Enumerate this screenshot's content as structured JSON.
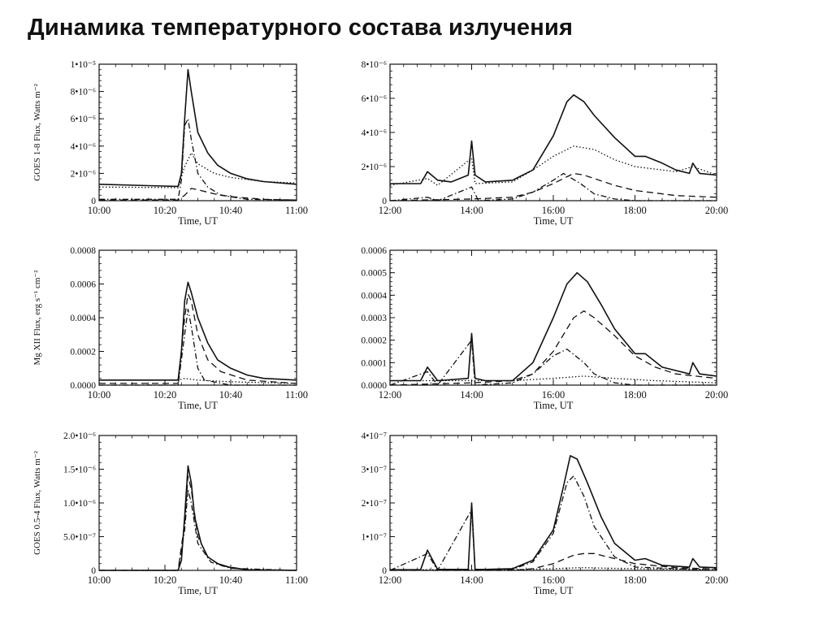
{
  "page": {
    "title": "Динамика температурного состава излучения"
  },
  "chart_data": [
    {
      "id": "goes18-left",
      "type": "line",
      "ylabel": "GOES 1-8 Flux, Watts m⁻²",
      "xlabel": "Time, UT",
      "xlim": [
        "10:00",
        "11:00"
      ],
      "ylim": [
        0,
        1e-05
      ],
      "xticks": [
        "10:00",
        "10:20",
        "10:40",
        "11:00"
      ],
      "yticks": [
        "0",
        "2•10⁻⁶",
        "4•10⁻⁶",
        "6•10⁻⁶",
        "8•10⁻⁶",
        "1•10⁻⁵"
      ],
      "series": [
        {
          "style": "solid",
          "x": [
            "10:00",
            "10:15",
            "10:24",
            "10:25",
            "10:26",
            "10:27",
            "10:28",
            "10:30",
            "10:33",
            "10:36",
            "10:40",
            "10:45",
            "10:50",
            "11:00"
          ],
          "y": [
            1.2e-06,
            1.1e-06,
            1.05e-06,
            2e-06,
            6e-06,
            9.6e-06,
            8e-06,
            5e-06,
            3.5e-06,
            2.6e-06,
            2e-06,
            1.6e-06,
            1.4e-06,
            1.2e-06
          ]
        },
        {
          "style": "dotted",
          "x": [
            "10:00",
            "10:24",
            "10:26",
            "10:28",
            "10:30",
            "10:35",
            "10:40",
            "10:50",
            "11:00"
          ],
          "y": [
            1e-06,
            9.5e-07,
            2.5e-06,
            3.5e-06,
            2.7e-06,
            2e-06,
            1.7e-06,
            1.4e-06,
            1.3e-06
          ]
        },
        {
          "style": "dash-dot",
          "x": [
            "10:00",
            "10:24",
            "10:25",
            "10:26",
            "10:27",
            "10:28",
            "10:30",
            "10:33",
            "10:37",
            "10:45",
            "11:00"
          ],
          "y": [
            1e-07,
            1e-07,
            1.5e-06,
            5.5e-06,
            6e-06,
            4.5e-06,
            2e-06,
            1e-06,
            4e-07,
            1e-07,
            5e-08
          ]
        },
        {
          "style": "dashed",
          "x": [
            "10:00",
            "10:24",
            "10:26",
            "10:28",
            "10:30",
            "10:35",
            "10:40",
            "10:50",
            "11:00"
          ],
          "y": [
            5e-08,
            5e-08,
            4e-07,
            9e-07,
            8e-07,
            5e-07,
            3e-07,
            1e-07,
            5e-08
          ]
        }
      ]
    },
    {
      "id": "goes18-right",
      "type": "line",
      "xlabel": "Time, UT",
      "xlim": [
        "12:00",
        "20:00"
      ],
      "ylim": [
        0,
        8e-06
      ],
      "xticks": [
        "12:00",
        "14:00",
        "16:00",
        "18:00",
        "20:00"
      ],
      "yticks": [
        "0",
        "2•10⁻⁶",
        "4•10⁻⁶",
        "6•10⁻⁶",
        "8•10⁻⁶"
      ],
      "series": [
        {
          "style": "solid",
          "x": [
            "12:00",
            "12:45",
            "12:55",
            "13:10",
            "13:30",
            "13:55",
            "14:00",
            "14:05",
            "14:20",
            "15:00",
            "15:30",
            "16:00",
            "16:20",
            "16:30",
            "16:45",
            "17:00",
            "17:30",
            "18:00",
            "18:15",
            "18:40",
            "19:00",
            "19:20",
            "19:25",
            "19:35",
            "20:00"
          ],
          "y": [
            1e-06,
            1e-06,
            1.7e-06,
            1.2e-06,
            1.1e-06,
            1.5e-06,
            3.5e-06,
            1.5e-06,
            1.1e-06,
            1.2e-06,
            1.8e-06,
            3.8e-06,
            5.8e-06,
            6.2e-06,
            5.8e-06,
            5e-06,
            3.7e-06,
            2.6e-06,
            2.6e-06,
            2.2e-06,
            1.8e-06,
            1.6e-06,
            2.2e-06,
            1.6e-06,
            1.5e-06
          ]
        },
        {
          "style": "dotted",
          "x": [
            "12:00",
            "12:55",
            "13:10",
            "14:00",
            "14:05",
            "15:00",
            "15:30",
            "16:00",
            "16:30",
            "17:00",
            "17:30",
            "18:00",
            "19:00",
            "19:25",
            "20:00"
          ],
          "y": [
            9e-07,
            1.3e-06,
            9e-07,
            2.5e-06,
            1e-06,
            1.1e-06,
            1.8e-06,
            2.6e-06,
            3.2e-06,
            3e-06,
            2.4e-06,
            2e-06,
            1.7e-06,
            2e-06,
            1.5e-06
          ]
        },
        {
          "style": "dashed",
          "x": [
            "12:00",
            "14:00",
            "15:00",
            "15:30",
            "16:00",
            "16:30",
            "16:45",
            "17:00",
            "17:30",
            "18:00",
            "19:00",
            "20:00"
          ],
          "y": [
            0.0,
            1e-07,
            2e-07,
            5e-07,
            1e-06,
            1.6e-06,
            1.5e-06,
            1.3e-06,
            9e-07,
            6e-07,
            3e-07,
            2e-07
          ]
        },
        {
          "style": "dash-dot",
          "x": [
            "12:00",
            "12:55",
            "13:10",
            "14:00",
            "14:10",
            "15:00",
            "15:30",
            "16:00",
            "16:15",
            "16:40",
            "17:00",
            "17:30",
            "18:00",
            "20:00"
          ],
          "y": [
            0.0,
            2e-07,
            0.0,
            8e-07,
            0.0,
            1e-07,
            5e-07,
            1.2e-06,
            1.6e-06,
            1e-06,
            4e-07,
            1e-07,
            0.0,
            0.0
          ]
        }
      ]
    },
    {
      "id": "mgxii-left",
      "type": "line",
      "ylabel": "Mg XII Flux, erg s⁻¹ cm⁻²",
      "xlabel": "Time, UT",
      "xlim": [
        "10:00",
        "11:00"
      ],
      "ylim": [
        0,
        0.0008
      ],
      "xticks": [
        "10:00",
        "10:20",
        "10:40",
        "11:00"
      ],
      "yticks": [
        "0.0000",
        "0.0002",
        "0.0004",
        "0.0006",
        "0.0008"
      ],
      "series": [
        {
          "style": "solid",
          "x": [
            "10:00",
            "10:24",
            "10:25",
            "10:26",
            "10:27",
            "10:28",
            "10:30",
            "10:33",
            "10:36",
            "10:40",
            "10:45",
            "10:50",
            "11:00"
          ],
          "y": [
            3e-05,
            3e-05,
            0.0002,
            0.0005,
            0.00061,
            0.00055,
            0.0004,
            0.00025,
            0.00015,
            0.0001,
            6e-05,
            4e-05,
            3e-05
          ]
        },
        {
          "style": "dashed",
          "x": [
            "10:00",
            "10:24",
            "10:26",
            "10:27",
            "10:28",
            "10:30",
            "10:33",
            "10:37",
            "10:45",
            "11:00"
          ],
          "y": [
            1e-05,
            1e-05,
            0.0004,
            0.00054,
            0.0005,
            0.0003,
            0.00015,
            8e-05,
            3e-05,
            1e-05
          ]
        },
        {
          "style": "dash-dot",
          "x": [
            "10:00",
            "10:24",
            "10:26",
            "10:27",
            "10:28",
            "10:30",
            "10:32",
            "10:40",
            "11:00"
          ],
          "y": [
            0.0,
            0.0,
            0.0003,
            0.00045,
            0.00035,
            0.0001,
            3e-05,
            0.0,
            0.0
          ]
        },
        {
          "style": "dotted",
          "x": [
            "10:00",
            "10:24",
            "10:26",
            "10:30",
            "10:40",
            "11:00"
          ],
          "y": [
            3e-05,
            3e-05,
            4e-05,
            3e-05,
            2e-05,
            1e-05
          ]
        }
      ]
    },
    {
      "id": "mgxii-right",
      "type": "line",
      "xlabel": "Time, UT",
      "xlim": [
        "12:00",
        "20:00"
      ],
      "ylim": [
        0,
        0.0006
      ],
      "xticks": [
        "12:00",
        "14:00",
        "16:00",
        "18:00",
        "20:00"
      ],
      "yticks": [
        "0.0000",
        "0.0001",
        "0.0002",
        "0.0003",
        "0.0004",
        "0.0005",
        "0.0006"
      ],
      "series": [
        {
          "style": "solid",
          "x": [
            "12:00",
            "12:45",
            "12:55",
            "13:10",
            "13:55",
            "14:00",
            "14:05",
            "14:20",
            "15:00",
            "15:30",
            "16:00",
            "16:20",
            "16:35",
            "16:50",
            "17:10",
            "17:30",
            "18:00",
            "18:15",
            "18:40",
            "19:20",
            "19:25",
            "19:35",
            "20:00"
          ],
          "y": [
            2e-05,
            2e-05,
            8e-05,
            2e-05,
            3e-05,
            0.00023,
            3e-05,
            2e-05,
            2e-05,
            0.0001,
            0.0003,
            0.00045,
            0.0005,
            0.00046,
            0.00036,
            0.00025,
            0.00014,
            0.00014,
            8e-05,
            5e-05,
            0.0001,
            5e-05,
            4e-05
          ]
        },
        {
          "style": "dashed",
          "x": [
            "12:00",
            "14:00",
            "15:00",
            "15:30",
            "16:00",
            "16:30",
            "16:45",
            "17:00",
            "17:30",
            "18:00",
            "18:30",
            "19:00",
            "20:00"
          ],
          "y": [
            0.0,
            1e-05,
            2e-05,
            5e-05,
            0.00015,
            0.0003,
            0.00033,
            0.0003,
            0.00022,
            0.00013,
            8e-05,
            5e-05,
            3e-05
          ]
        },
        {
          "style": "dash-dot",
          "x": [
            "12:00",
            "12:55",
            "13:10",
            "14:00",
            "14:05",
            "15:00",
            "15:30",
            "16:00",
            "16:20",
            "16:45",
            "17:00",
            "17:30",
            "18:00",
            "20:00"
          ],
          "y": [
            0.0,
            6e-05,
            0.0,
            0.0002,
            0.0,
            1e-05,
            5e-05,
            0.00013,
            0.00016,
            0.0001,
            5e-05,
            1e-05,
            0.0,
            0.0
          ]
        },
        {
          "style": "dotted",
          "x": [
            "12:00",
            "15:00",
            "16:00",
            "16:45",
            "17:30",
            "18:30",
            "20:00"
          ],
          "y": [
            2e-05,
            2e-05,
            3e-05,
            4e-05,
            3e-05,
            2e-05,
            1e-05
          ]
        }
      ]
    },
    {
      "id": "goes054-left",
      "type": "line",
      "ylabel": "GOES 0.5-4 Flux, Watts m⁻²",
      "xlabel": "Time, UT",
      "xlim": [
        "10:00",
        "11:00"
      ],
      "ylim": [
        0,
        2e-06
      ],
      "xticks": [
        "10:00",
        "10:20",
        "10:40",
        "11:00"
      ],
      "yticks": [
        "0",
        "5.0•10⁻⁷",
        "1.0•10⁻⁶",
        "1.5•10⁻⁶",
        "2.0•10⁻⁶"
      ],
      "series": [
        {
          "style": "solid",
          "x": [
            "10:00",
            "10:24",
            "10:25",
            "10:26",
            "10:27",
            "10:28",
            "10:29",
            "10:31",
            "10:33",
            "10:36",
            "10:40",
            "10:45",
            "11:00"
          ],
          "y": [
            0.0,
            0.0,
            1.5e-07,
            8e-07,
            1.55e-06,
            1.3e-06,
            8e-07,
            4e-07,
            2e-07,
            1e-07,
            4e-08,
            1e-08,
            0.0
          ]
        },
        {
          "style": "dashed",
          "x": [
            "10:00",
            "10:24",
            "10:26",
            "10:27",
            "10:28",
            "10:30",
            "10:33",
            "10:37",
            "10:45",
            "11:00"
          ],
          "y": [
            0.0,
            0.0,
            7e-07,
            1.4e-06,
            1.2e-06,
            5e-07,
            2e-07,
            7e-08,
            1e-08,
            0.0
          ]
        },
        {
          "style": "dash-dot",
          "x": [
            "10:00",
            "10:24",
            "10:26",
            "10:27",
            "10:28",
            "10:30",
            "10:34",
            "10:40",
            "11:00"
          ],
          "y": [
            0.0,
            0.0,
            6e-07,
            1.2e-06,
            1e-06,
            4e-07,
            1.2e-07,
            3e-08,
            0.0
          ]
        }
      ]
    },
    {
      "id": "goes054-right",
      "type": "line",
      "xlabel": "Time, UT",
      "xlim": [
        "12:00",
        "20:00"
      ],
      "ylim": [
        0,
        4e-07
      ],
      "xticks": [
        "12:00",
        "14:00",
        "16:00",
        "18:00",
        "20:00"
      ],
      "yticks": [
        "0",
        "1•10⁻⁷",
        "2•10⁻⁷",
        "3•10⁻⁷",
        "4•10⁻⁷"
      ],
      "series": [
        {
          "style": "solid",
          "x": [
            "12:00",
            "12:45",
            "12:55",
            "13:10",
            "13:55",
            "14:00",
            "14:05",
            "14:20",
            "15:00",
            "15:30",
            "16:00",
            "16:15",
            "16:25",
            "16:35",
            "16:50",
            "17:10",
            "17:30",
            "18:00",
            "18:15",
            "18:40",
            "19:20",
            "19:25",
            "19:35",
            "20:00"
          ],
          "y": [
            2e-09,
            2e-09,
            6e-08,
            3e-09,
            3e-09,
            2e-07,
            3e-09,
            3e-09,
            5e-09,
            3e-08,
            1.2e-07,
            2.5e-07,
            3.4e-07,
            3.3e-07,
            2.6e-07,
            1.6e-07,
            8e-08,
            3e-08,
            3.5e-08,
            1.5e-08,
            1e-08,
            3.5e-08,
            1e-08,
            8e-09
          ]
        },
        {
          "style": "dash-dot",
          "x": [
            "12:00",
            "12:55",
            "13:10",
            "14:00",
            "14:05",
            "15:00",
            "15:30",
            "16:00",
            "16:20",
            "16:30",
            "16:45",
            "17:00",
            "17:30",
            "18:00",
            "20:00"
          ],
          "y": [
            0.0,
            5e-08,
            0.0,
            1.8e-07,
            0.0,
            3e-09,
            2.5e-08,
            1.1e-07,
            2.6e-07,
            2.8e-07,
            2.2e-07,
            1.3e-07,
            4e-08,
            1e-08,
            0.0
          ]
        },
        {
          "style": "dashed",
          "x": [
            "12:00",
            "15:00",
            "15:30",
            "16:00",
            "16:30",
            "16:45",
            "17:00",
            "17:30",
            "18:00",
            "19:00",
            "20:00"
          ],
          "y": [
            0.0,
            0.0,
            5e-09,
            2e-08,
            4.5e-08,
            5e-08,
            5e-08,
            3.5e-08,
            2e-08,
            8e-09,
            4e-09
          ]
        },
        {
          "style": "dotted",
          "x": [
            "12:00",
            "15:00",
            "16:00",
            "16:40",
            "17:30",
            "18:30",
            "20:00"
          ],
          "y": [
            2e-09,
            2e-09,
            5e-09,
            8e-09,
            6e-09,
            4e-09,
            3e-09
          ]
        }
      ]
    }
  ]
}
